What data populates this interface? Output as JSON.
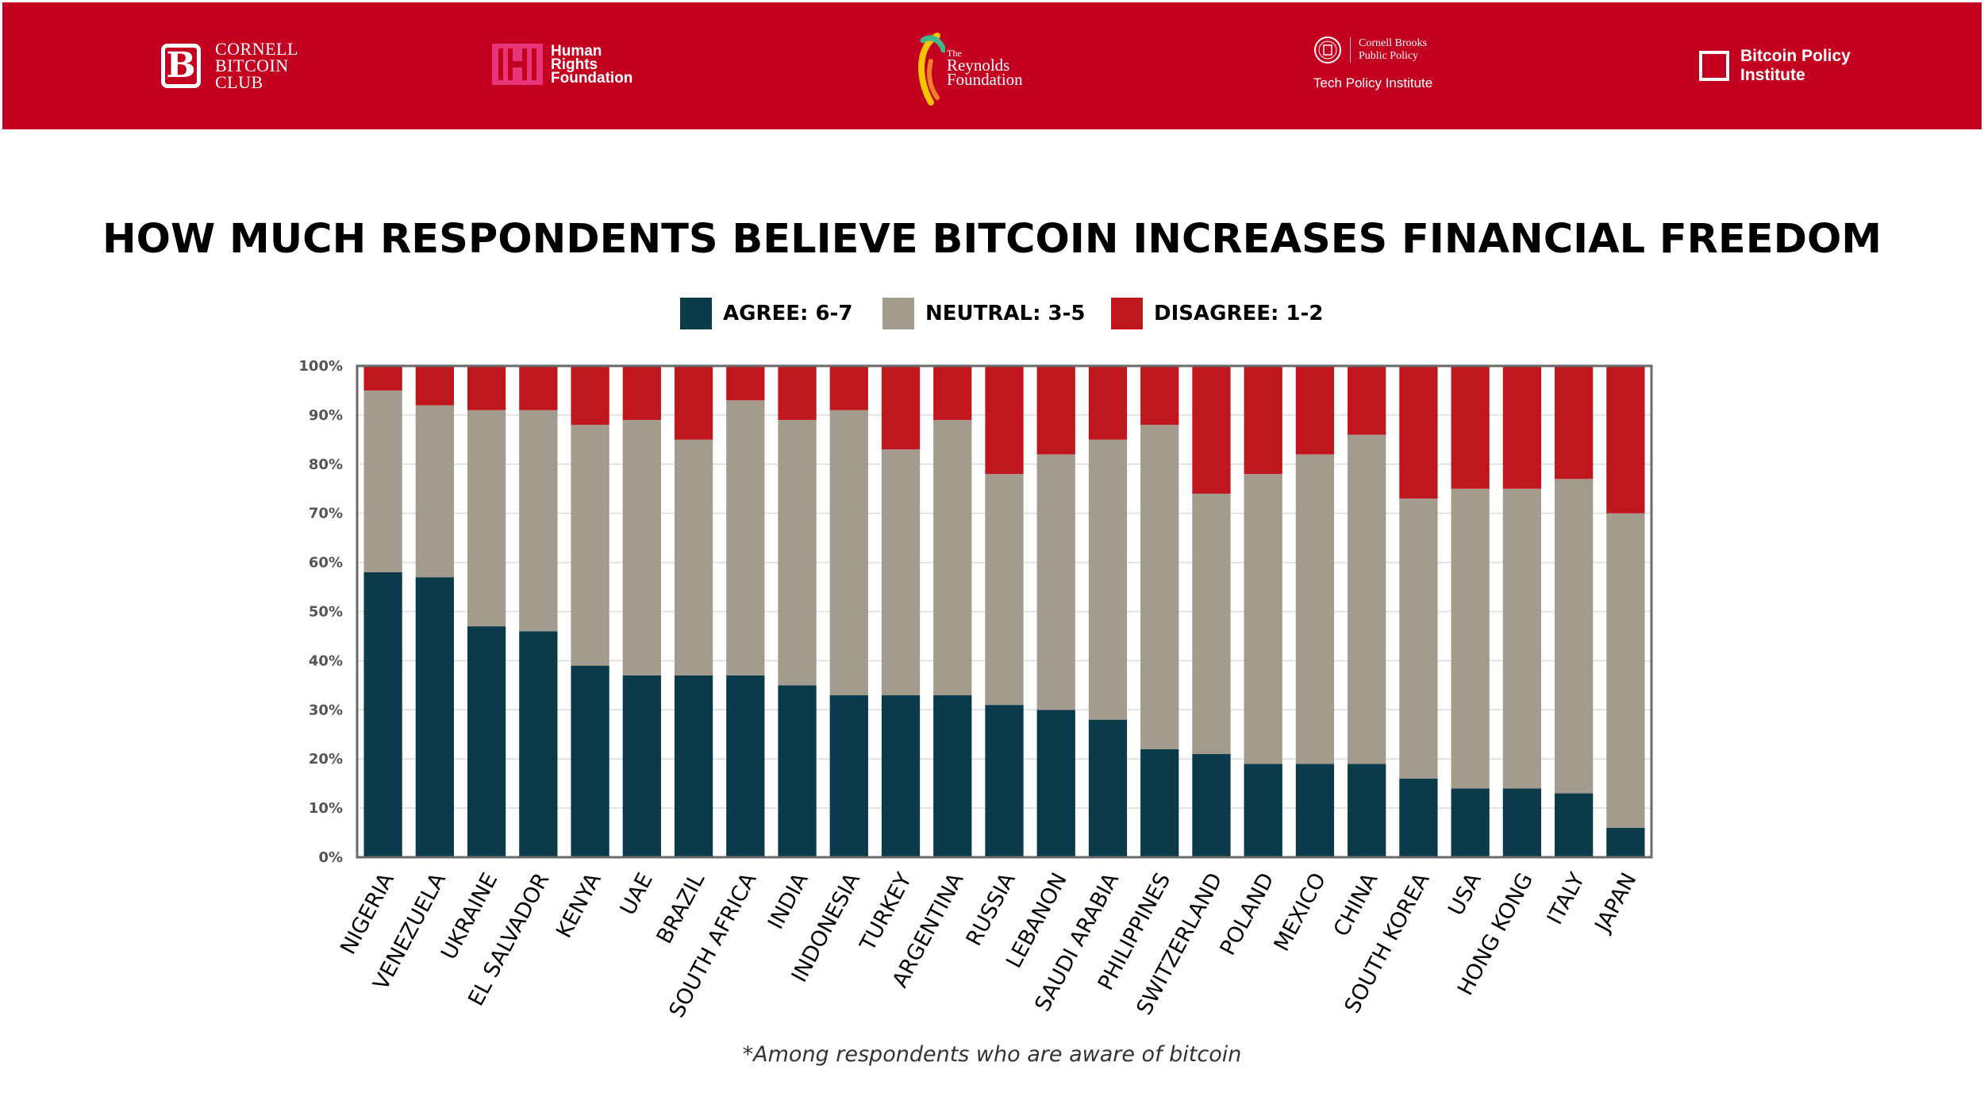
{
  "header": {
    "logos": {
      "cbc": {
        "line1": "CORNELL",
        "line2": "BITCOIN",
        "line3": "CLUB",
        "mark": "bitcoin-b-icon"
      },
      "hrf": {
        "line1": "Human",
        "line2": "Rights",
        "line3": "Foundation"
      },
      "reynolds": {
        "the": "The",
        "line1": "Reynolds",
        "line2": "Foundation"
      },
      "cbp": {
        "line1": "Cornell Brooks",
        "line2": "Public Policy",
        "sub": "Tech Policy Institute"
      },
      "bpi": {
        "line1": "Bitcoin Policy",
        "line2": "Institute"
      }
    },
    "colors": {
      "banner": "#c3001f"
    }
  },
  "footnote": "*Among respondents who are aware of bitcoin",
  "chart_data": {
    "type": "bar",
    "stacked": true,
    "title": "HOW MUCH RESPONDENTS BELIEVE BITCOIN INCREASES FINANCIAL FREEDOM",
    "xlabel": "",
    "ylabel": "",
    "ylim": [
      0,
      100
    ],
    "yticks": [
      "0%",
      "10%",
      "20%",
      "30%",
      "40%",
      "50%",
      "60%",
      "70%",
      "80%",
      "90%",
      "100%"
    ],
    "grid": true,
    "legend_position": "top-center",
    "categories": [
      "NIGERIA",
      "VENEZUELA",
      "UKRAINE",
      "EL SALVADOR",
      "KENYA",
      "UAE",
      "BRAZIL",
      "SOUTH AFRICA",
      "INDIA",
      "INDONESIA",
      "TURKEY",
      "ARGENTINA",
      "RUSSIA",
      "LEBANON",
      "SAUDI ARABIA",
      "PHILIPPINES",
      "SWITZERLAND",
      "POLAND",
      "MEXICO",
      "CHINA",
      "SOUTH KOREA",
      "USA",
      "HONG KONG",
      "ITALY",
      "JAPAN"
    ],
    "series": [
      {
        "name": "AGREE: 6-7",
        "color": "#0b3a4a",
        "values": [
          58,
          57,
          47,
          46,
          39,
          37,
          37,
          37,
          35,
          33,
          33,
          33,
          31,
          30,
          28,
          22,
          21,
          19,
          19,
          19,
          16,
          14,
          14,
          13,
          6
        ]
      },
      {
        "name": "NEUTRAL: 3-5",
        "color": "#a29b8e",
        "values": [
          37,
          35,
          44,
          45,
          49,
          52,
          48,
          56,
          54,
          58,
          50,
          56,
          47,
          52,
          57,
          66,
          53,
          59,
          63,
          67,
          57,
          61,
          61,
          64,
          64
        ]
      },
      {
        "name": "DISAGREE: 1-2",
        "color": "#c0161d",
        "values": [
          5,
          8,
          9,
          9,
          12,
          11,
          15,
          7,
          11,
          9,
          17,
          11,
          22,
          18,
          15,
          12,
          26,
          22,
          18,
          14,
          27,
          25,
          25,
          23,
          30
        ]
      }
    ]
  }
}
